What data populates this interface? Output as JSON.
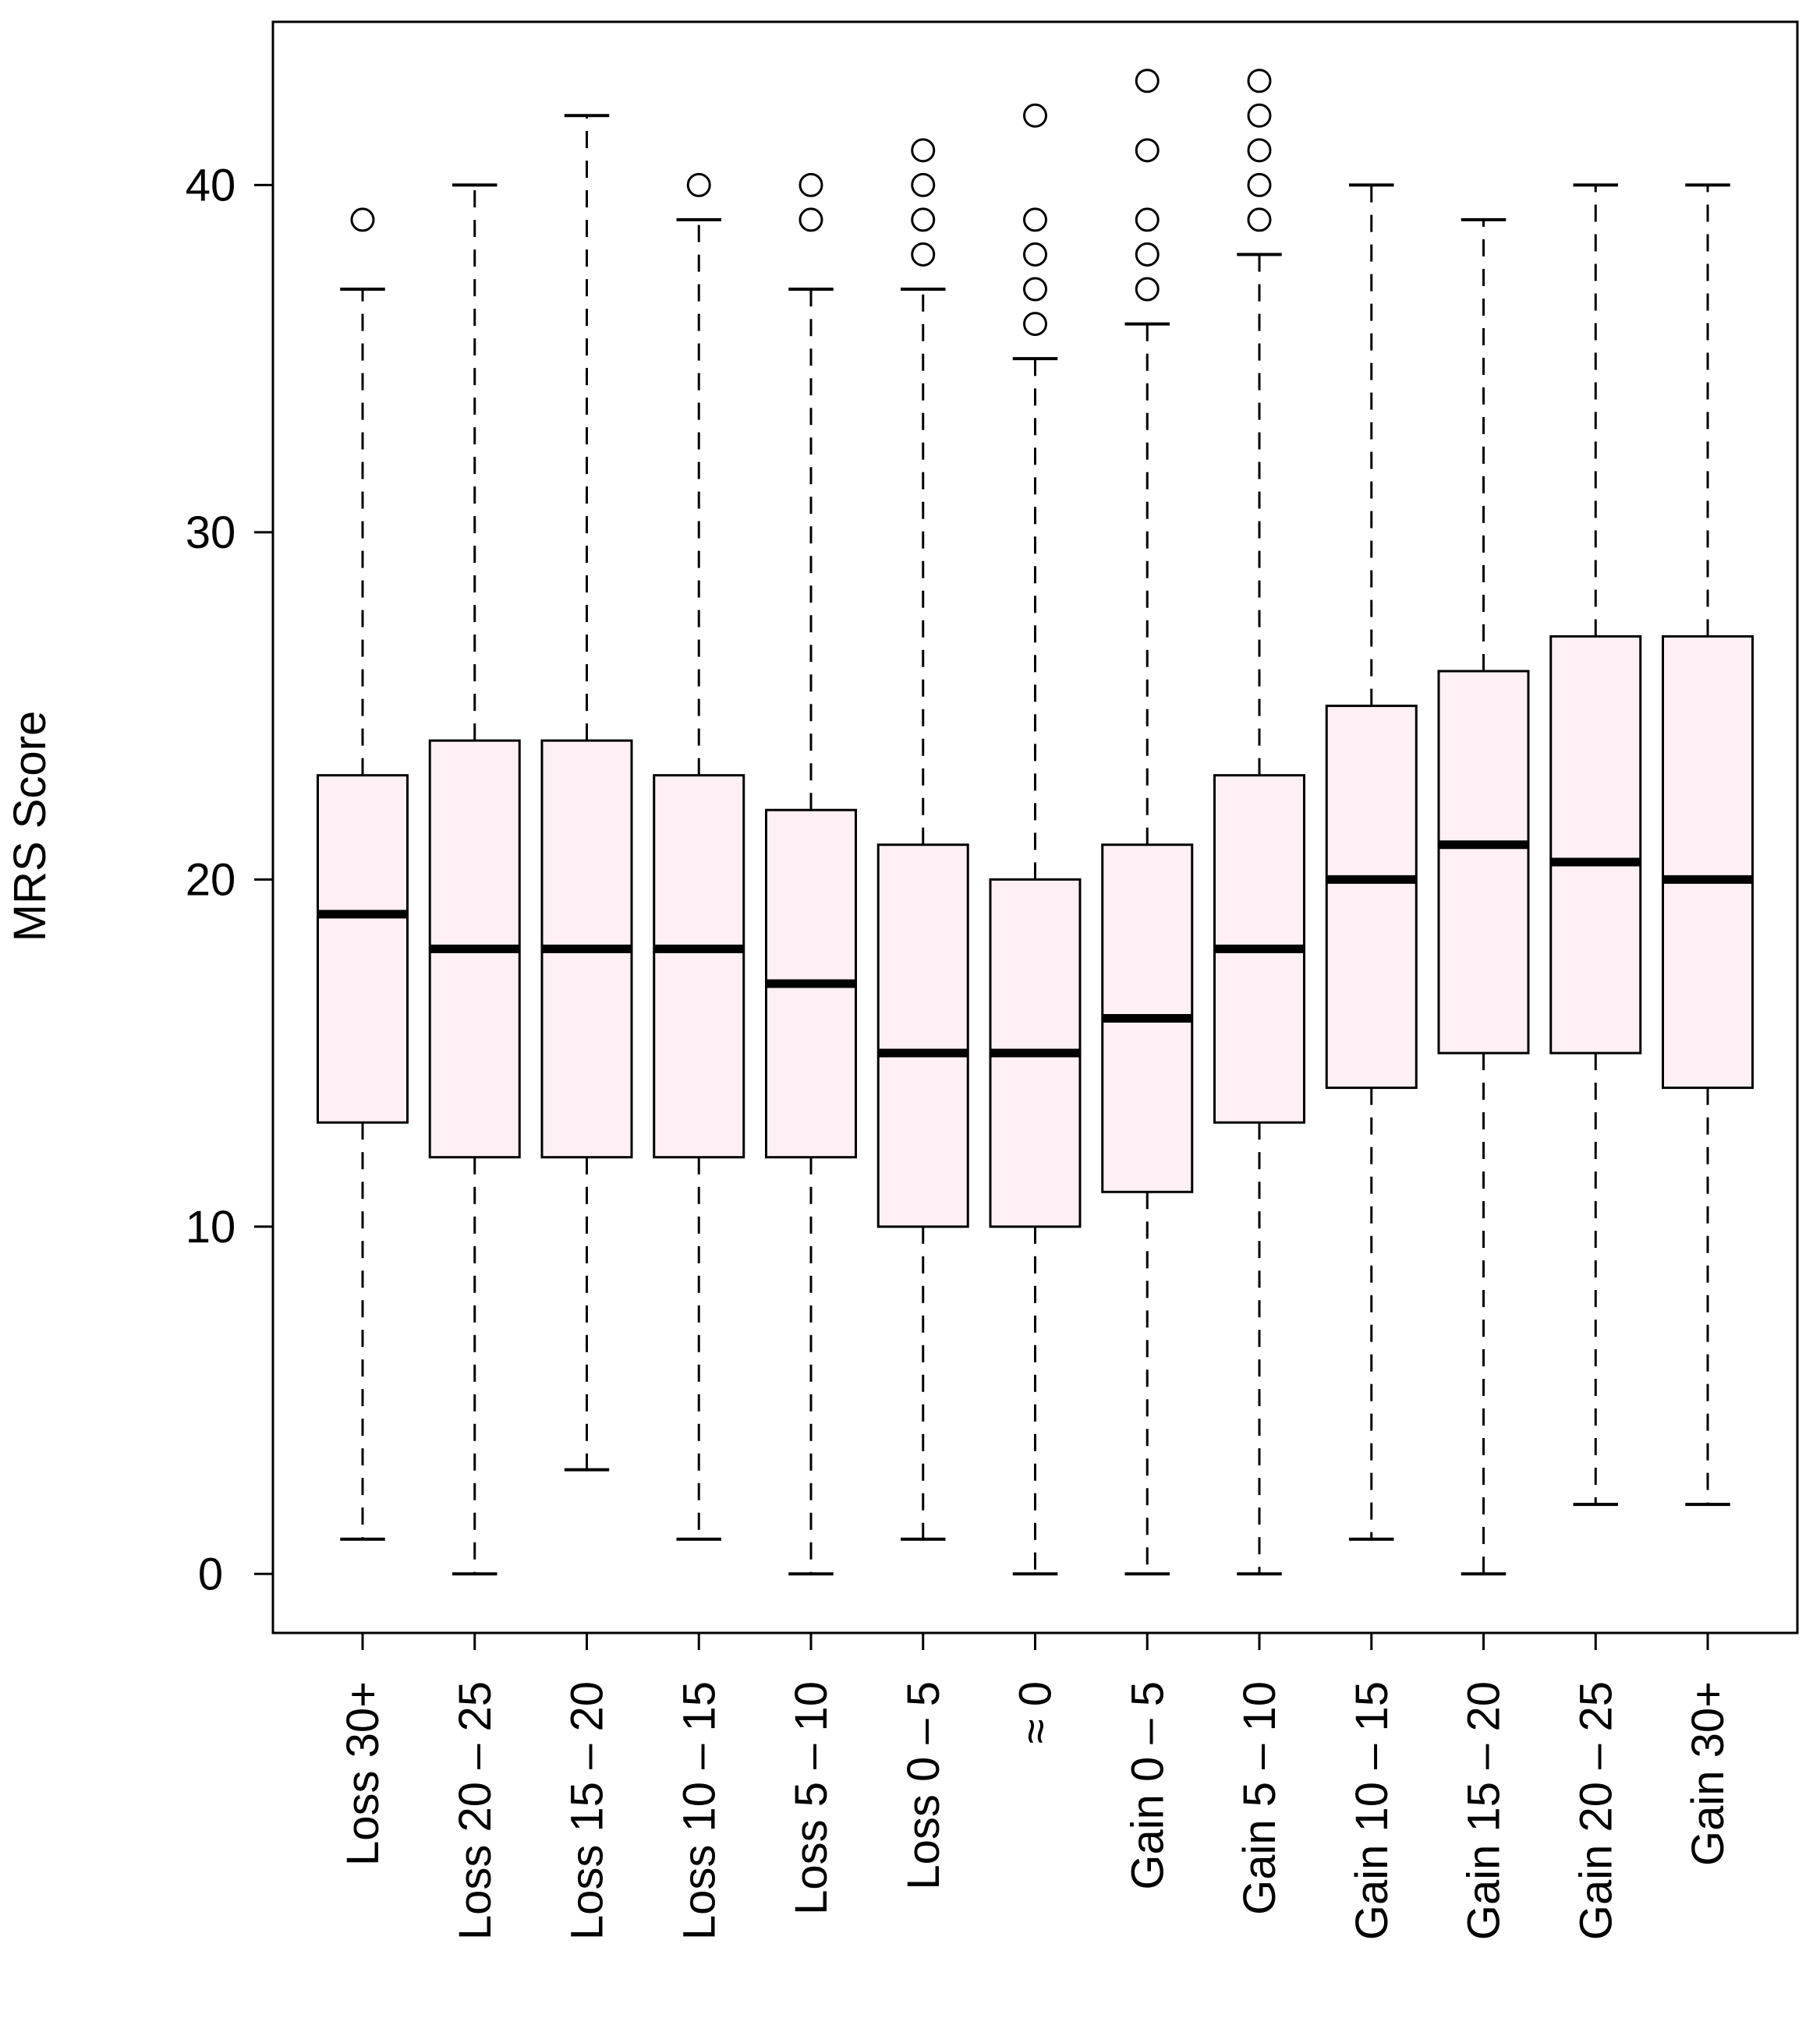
{
  "chart_data": {
    "type": "boxplot",
    "title": "",
    "xlabel": "",
    "ylabel": "MRS Score",
    "ylim": [
      -1.7,
      44.7
    ],
    "yticks": [
      0,
      10,
      20,
      30,
      40
    ],
    "yticklabels": [
      "0",
      "10",
      "20",
      "30",
      "40"
    ],
    "colors": {
      "box_fill": "#fff0f5",
      "stroke": "#000000",
      "background": "#ffffff"
    },
    "categories": [
      "Loss 30+",
      "Loss 20 – 25",
      "Loss 15 – 20",
      "Loss 10 – 15",
      "Loss 5 – 10",
      "Loss 0 – 5",
      "≈ 0",
      "Gain 0 – 5",
      "Gain 5 – 10",
      "Gain 10 – 15",
      "Gain 15 – 20",
      "Gain 20 – 25",
      "Gain 30+"
    ],
    "boxes": [
      {
        "whisker_low": 1,
        "q1": 13,
        "median": 19,
        "q3": 23,
        "whisker_high": 37,
        "outliers": [
          39
        ]
      },
      {
        "whisker_low": 0,
        "q1": 12,
        "median": 18,
        "q3": 24,
        "whisker_high": 40,
        "outliers": []
      },
      {
        "whisker_low": 3,
        "q1": 12,
        "median": 18,
        "q3": 24,
        "whisker_high": 42,
        "outliers": []
      },
      {
        "whisker_low": 1,
        "q1": 12,
        "median": 18,
        "q3": 23,
        "whisker_high": 39,
        "outliers": [
          40
        ]
      },
      {
        "whisker_low": 0,
        "q1": 12,
        "median": 17,
        "q3": 22,
        "whisker_high": 37,
        "outliers": [
          39,
          40
        ]
      },
      {
        "whisker_low": 1,
        "q1": 10,
        "median": 15,
        "q3": 21,
        "whisker_high": 37,
        "outliers": [
          38,
          39,
          40,
          41
        ]
      },
      {
        "whisker_low": 0,
        "q1": 10,
        "median": 15,
        "q3": 20,
        "whisker_high": 35,
        "outliers": [
          36,
          37,
          38,
          39,
          42
        ]
      },
      {
        "whisker_low": 0,
        "q1": 11,
        "median": 16,
        "q3": 21,
        "whisker_high": 36,
        "outliers": [
          37,
          38,
          39,
          41,
          43
        ]
      },
      {
        "whisker_low": 0,
        "q1": 13,
        "median": 18,
        "q3": 23,
        "whisker_high": 38,
        "outliers": [
          39,
          40,
          41,
          42,
          43
        ]
      },
      {
        "whisker_low": 1,
        "q1": 14,
        "median": 20,
        "q3": 25,
        "whisker_high": 40,
        "outliers": []
      },
      {
        "whisker_low": 0,
        "q1": 15,
        "median": 21,
        "q3": 26,
        "whisker_high": 39,
        "outliers": []
      },
      {
        "whisker_low": 2,
        "q1": 15,
        "median": 20.5,
        "q3": 27,
        "whisker_high": 40,
        "outliers": []
      },
      {
        "whisker_low": 2,
        "q1": 14,
        "median": 20,
        "q3": 27,
        "whisker_high": 40,
        "outliers": []
      }
    ]
  }
}
